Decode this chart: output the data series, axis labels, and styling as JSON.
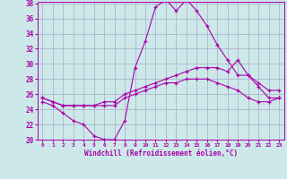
{
  "xlabel": "Windchill (Refroidissement éolien,°C)",
  "background_color": "#cce8e8",
  "grid_color": "#aaaacc",
  "line_color": "#aa00aa",
  "x": [
    0,
    1,
    2,
    3,
    4,
    5,
    6,
    7,
    8,
    9,
    10,
    11,
    12,
    13,
    14,
    15,
    16,
    17,
    18,
    19,
    20,
    21,
    22,
    23
  ],
  "line1": [
    25.0,
    24.5,
    23.5,
    22.5,
    22.0,
    20.5,
    20.0,
    20.0,
    22.5,
    29.5,
    33.0,
    37.5,
    38.5,
    37.0,
    38.5,
    37.0,
    35.0,
    32.5,
    30.5,
    28.5,
    28.5,
    27.0,
    25.5,
    25.5
  ],
  "line2": [
    25.5,
    25.0,
    24.5,
    24.5,
    24.5,
    24.5,
    25.0,
    25.0,
    26.0,
    26.5,
    27.0,
    27.5,
    28.0,
    28.5,
    29.0,
    29.5,
    29.5,
    29.5,
    29.0,
    30.5,
    28.5,
    27.5,
    26.5,
    26.5
  ],
  "line3": [
    25.5,
    25.0,
    24.5,
    24.5,
    24.5,
    24.5,
    24.5,
    24.5,
    25.5,
    26.0,
    26.5,
    27.0,
    27.5,
    27.5,
    28.0,
    28.0,
    28.0,
    27.5,
    27.0,
    26.5,
    25.5,
    25.0,
    25.0,
    25.5
  ],
  "ylim": [
    20,
    38
  ],
  "yticks": [
    20,
    22,
    24,
    26,
    28,
    30,
    32,
    34,
    36,
    38
  ]
}
